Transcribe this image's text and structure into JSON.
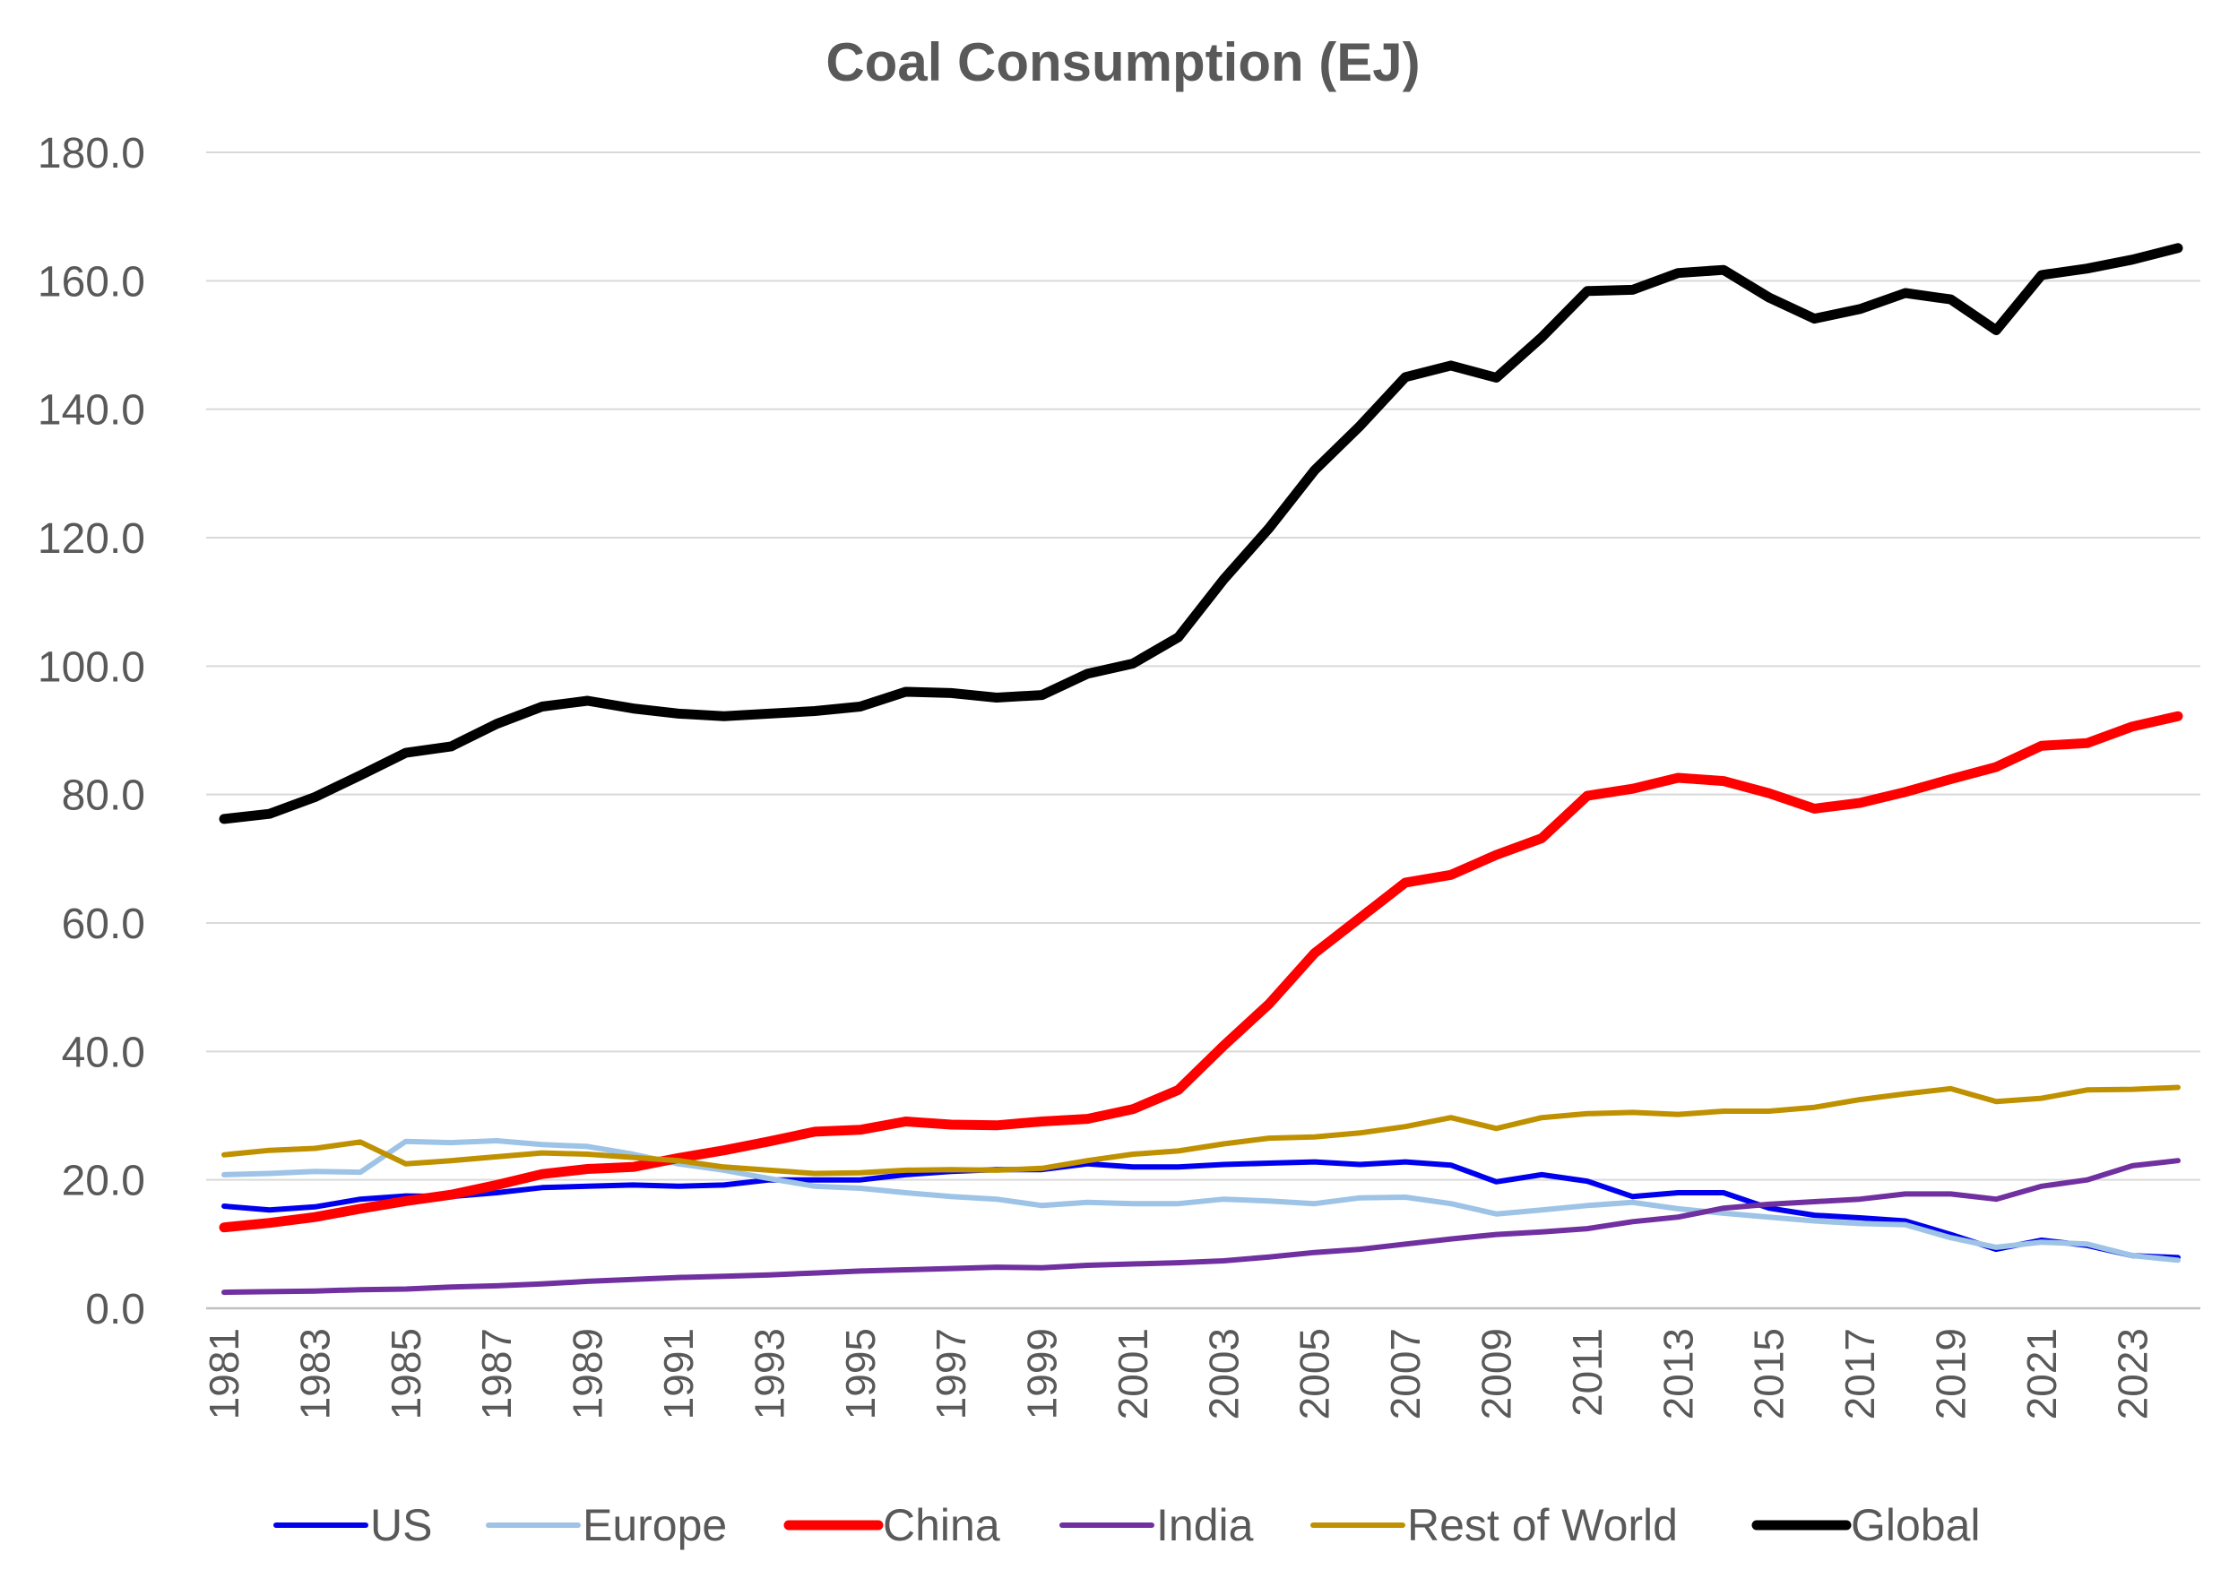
{
  "chart_data": {
    "type": "line",
    "title": "Coal Consumption (EJ)",
    "xlabel": "",
    "ylabel": "",
    "ylim": [
      0,
      180
    ],
    "yticks": [
      "0.0",
      "20.0",
      "40.0",
      "60.0",
      "80.0",
      "100.0",
      "120.0",
      "140.0",
      "160.0",
      "180.0"
    ],
    "x": [
      1981,
      1982,
      1983,
      1984,
      1985,
      1986,
      1987,
      1988,
      1989,
      1990,
      1991,
      1992,
      1993,
      1994,
      1995,
      1996,
      1997,
      1998,
      1999,
      2000,
      2001,
      2002,
      2003,
      2004,
      2005,
      2006,
      2007,
      2008,
      2009,
      2010,
      2011,
      2012,
      2013,
      2014,
      2015,
      2016,
      2017,
      2018,
      2019,
      2020,
      2021,
      2022,
      2023,
      2024
    ],
    "xtick_labels": [
      "1981",
      "1983",
      "1985",
      "1987",
      "1989",
      "1991",
      "1993",
      "1995",
      "1997",
      "1999",
      "2001",
      "2003",
      "2005",
      "2007",
      "2009",
      "2011",
      "2013",
      "2015",
      "2017",
      "2019",
      "2021",
      "2023"
    ],
    "grid": true,
    "legend_position": "bottom",
    "series": [
      {
        "name": "US",
        "color": "#0000ee",
        "width": 6,
        "values": [
          15.9,
          15.3,
          15.8,
          17.0,
          17.5,
          17.4,
          18.0,
          18.8,
          19.0,
          19.2,
          19.0,
          19.2,
          20.0,
          20.0,
          20.0,
          20.8,
          21.3,
          21.6,
          21.6,
          22.5,
          22.0,
          22.0,
          22.4,
          22.6,
          22.8,
          22.4,
          22.8,
          22.3,
          19.7,
          20.8,
          19.8,
          17.4,
          18.0,
          18.0,
          15.6,
          14.5,
          14.1,
          13.6,
          11.5,
          9.2,
          10.6,
          9.8,
          8.2,
          7.9
        ]
      },
      {
        "name": "Europe",
        "color": "#9dc3e6",
        "width": 6,
        "values": [
          20.8,
          21.0,
          21.3,
          21.2,
          26.0,
          25.8,
          26.1,
          25.5,
          25.2,
          24.0,
          22.5,
          21.5,
          20.2,
          19.0,
          18.7,
          18.0,
          17.4,
          17.0,
          16.0,
          16.5,
          16.3,
          16.3,
          17.0,
          16.7,
          16.3,
          17.2,
          17.3,
          16.3,
          14.7,
          15.3,
          16.0,
          16.5,
          15.5,
          14.8,
          14.2,
          13.6,
          13.2,
          13.0,
          11.0,
          9.5,
          10.3,
          10.0,
          8.2,
          7.5
        ]
      },
      {
        "name": "China",
        "color": "#ff0000",
        "width": 11,
        "values": [
          12.6,
          13.3,
          14.2,
          15.5,
          16.7,
          17.7,
          19.2,
          20.9,
          21.7,
          22.0,
          23.4,
          24.6,
          26.0,
          27.5,
          27.8,
          29.1,
          28.6,
          28.5,
          29.1,
          29.5,
          31.0,
          34.0,
          40.9,
          47.4,
          55.3,
          60.8,
          66.3,
          67.5,
          70.6,
          73.2,
          79.8,
          80.9,
          82.6,
          82.1,
          80.2,
          77.8,
          78.7,
          80.4,
          82.4,
          84.3,
          87.6,
          88.0,
          90.6,
          92.2
        ]
      },
      {
        "name": "India",
        "color": "#7030a0",
        "width": 6,
        "values": [
          2.5,
          2.6,
          2.7,
          2.9,
          3.0,
          3.3,
          3.5,
          3.8,
          4.2,
          4.5,
          4.8,
          5.0,
          5.2,
          5.5,
          5.8,
          6.0,
          6.2,
          6.4,
          6.3,
          6.7,
          6.9,
          7.1,
          7.4,
          8.0,
          8.7,
          9.2,
          10.0,
          10.8,
          11.5,
          11.9,
          12.4,
          13.5,
          14.2,
          15.6,
          16.2,
          16.6,
          17.0,
          17.8,
          17.8,
          17.0,
          19.0,
          20.0,
          22.2,
          23.0
        ]
      },
      {
        "name": "Rest of World",
        "color": "#bf9000",
        "width": 6,
        "values": [
          23.9,
          24.6,
          24.9,
          25.9,
          22.5,
          23.0,
          23.6,
          24.2,
          24.0,
          23.5,
          23.0,
          22.0,
          21.5,
          21.0,
          21.1,
          21.5,
          21.6,
          21.5,
          21.8,
          23.0,
          24.0,
          24.5,
          25.6,
          26.5,
          26.7,
          27.3,
          28.3,
          29.7,
          28.0,
          29.7,
          30.3,
          30.5,
          30.2,
          30.7,
          30.7,
          31.3,
          32.5,
          33.4,
          34.2,
          32.2,
          32.7,
          34.0,
          34.1,
          34.4
        ]
      },
      {
        "name": "Global",
        "color": "#000000",
        "width": 11,
        "values": [
          76.2,
          77.0,
          79.6,
          83.0,
          86.5,
          87.5,
          91.0,
          93.7,
          94.6,
          93.4,
          92.6,
          92.2,
          92.6,
          93.0,
          93.7,
          96.0,
          95.8,
          95.1,
          95.5,
          98.8,
          100.4,
          104.5,
          113.5,
          121.5,
          130.5,
          137.4,
          145.0,
          146.8,
          144.9,
          151.2,
          158.4,
          158.6,
          161.2,
          161.7,
          157.4,
          154.1,
          155.6,
          158.1,
          157.1,
          152.3,
          160.9,
          161.9,
          163.3,
          165.1
        ]
      }
    ]
  }
}
